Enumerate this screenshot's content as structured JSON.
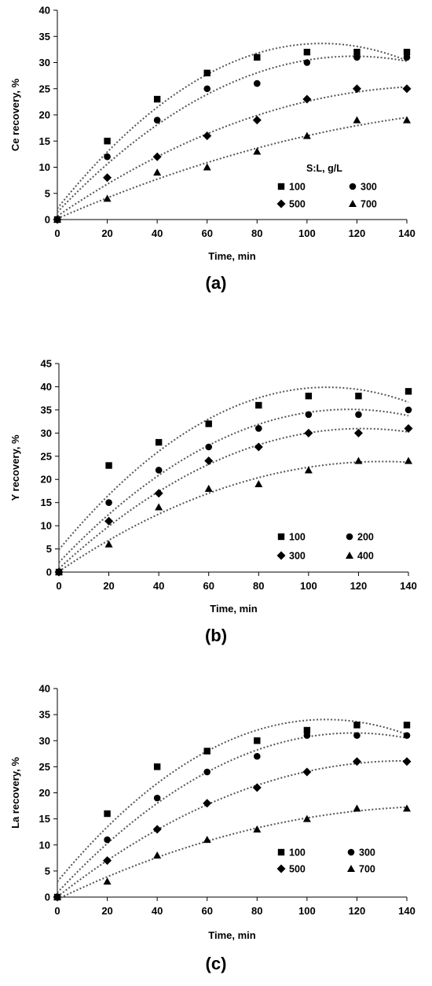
{
  "chart_data": [
    {
      "type": "scatter",
      "panel_label": "(a)",
      "xlabel": "Time, min",
      "ylabel": "Ce recovery, %",
      "xlim": [
        0,
        140
      ],
      "ylim": [
        0,
        40
      ],
      "xticks": [
        0,
        20,
        40,
        60,
        80,
        100,
        120,
        140
      ],
      "yticks": [
        0,
        5,
        10,
        15,
        20,
        25,
        30,
        35,
        40
      ],
      "grid": false,
      "legend_title": "S:L, g/L",
      "legend_position": "bottom-right",
      "x": [
        0,
        20,
        40,
        60,
        80,
        100,
        120,
        140
      ],
      "series": [
        {
          "name": "100",
          "marker": "square",
          "values": [
            0,
            15,
            23,
            28,
            31,
            32,
            32,
            32
          ]
        },
        {
          "name": "300",
          "marker": "circle",
          "values": [
            0,
            12,
            19,
            25,
            26,
            30,
            31,
            31
          ]
        },
        {
          "name": "500",
          "marker": "diamond",
          "values": [
            0,
            8,
            12,
            16,
            19,
            23,
            25,
            25
          ]
        },
        {
          "name": "700",
          "marker": "triangle",
          "values": [
            0,
            4,
            9,
            10,
            13,
            16,
            19,
            19
          ]
        }
      ],
      "trendline": "polynomial (order 2), dotted"
    },
    {
      "type": "scatter",
      "panel_label": "(b)",
      "xlabel": "Time, min",
      "ylabel": "Y recovery, %",
      "xlim": [
        0,
        140
      ],
      "ylim": [
        0,
        45
      ],
      "xticks": [
        0,
        20,
        40,
        60,
        80,
        100,
        120,
        140
      ],
      "yticks": [
        0,
        5,
        10,
        15,
        20,
        25,
        30,
        35,
        40,
        45
      ],
      "grid": false,
      "legend_title": "",
      "legend_position": "bottom-right",
      "x": [
        0,
        20,
        40,
        60,
        80,
        100,
        120,
        140
      ],
      "series": [
        {
          "name": "100",
          "marker": "square",
          "values": [
            0,
            23,
            28,
            32,
            36,
            38,
            38,
            39
          ]
        },
        {
          "name": "200",
          "marker": "circle",
          "values": [
            0,
            15,
            22,
            27,
            31,
            34,
            34,
            35
          ]
        },
        {
          "name": "300",
          "marker": "diamond",
          "values": [
            0,
            11,
            17,
            24,
            27,
            30,
            30,
            31
          ]
        },
        {
          "name": "400",
          "marker": "triangle",
          "values": [
            0,
            6,
            14,
            18,
            19,
            22,
            24,
            24
          ]
        }
      ],
      "trendline": "polynomial (order 2), dotted"
    },
    {
      "type": "scatter",
      "panel_label": "(c)",
      "xlabel": "Time, min",
      "ylabel": "La recovery, %",
      "xlim": [
        0,
        140
      ],
      "ylim": [
        0,
        40
      ],
      "xticks": [
        0,
        20,
        40,
        60,
        80,
        100,
        120,
        140
      ],
      "yticks": [
        0,
        5,
        10,
        15,
        20,
        25,
        30,
        35,
        40
      ],
      "grid": false,
      "legend_title": "",
      "legend_position": "bottom-right",
      "x": [
        0,
        20,
        40,
        60,
        80,
        100,
        120,
        140
      ],
      "series": [
        {
          "name": "100",
          "marker": "square",
          "values": [
            0,
            16,
            25,
            28,
            30,
            32,
            33,
            33
          ]
        },
        {
          "name": "300",
          "marker": "circle",
          "values": [
            0,
            11,
            19,
            24,
            27,
            31,
            31,
            31
          ]
        },
        {
          "name": "500",
          "marker": "diamond",
          "values": [
            0,
            7,
            13,
            18,
            21,
            24,
            26,
            26
          ]
        },
        {
          "name": "700",
          "marker": "triangle",
          "values": [
            0,
            3,
            8,
            11,
            13,
            15,
            17,
            17
          ]
        }
      ],
      "trendline": "polynomial (order 2), dotted"
    }
  ]
}
